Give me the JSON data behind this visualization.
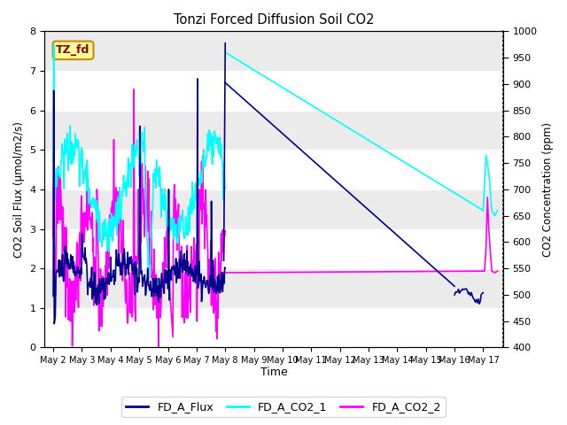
{
  "title": "Tonzi Forced Diffusion Soil CO2",
  "xlabel": "Time",
  "ylabel_left": "CO2 Soil Flux (μmol/m2/s)",
  "ylabel_right": "CO2 Concentration (ppm)",
  "ylim_left": [
    0.0,
    8.0
  ],
  "ylim_right": [
    400,
    1000
  ],
  "yticks_left": [
    0.0,
    1.0,
    2.0,
    3.0,
    4.0,
    5.0,
    6.0,
    7.0,
    8.0
  ],
  "yticks_right": [
    400,
    450,
    500,
    550,
    600,
    650,
    700,
    750,
    800,
    850,
    900,
    950,
    1000
  ],
  "xtick_labels": [
    "May 2",
    "May 3",
    "May 4",
    "May 5",
    "May 6",
    "May 7",
    "May 8",
    "May 9",
    "May 10",
    "May 11",
    "May 12",
    "May 13",
    "May 14",
    "May 15",
    "May 16",
    "May 17"
  ],
  "flux_color": "#00008B",
  "co2_1_color": "#00FFFF",
  "co2_2_color": "#FF00FF",
  "legend_entries": [
    "FD_A_Flux",
    "FD_A_CO2_1",
    "FD_A_CO2_2"
  ],
  "annotation_text": "TZ_fd",
  "annotation_bg": "#FFFF99",
  "annotation_border": "#CC8800",
  "plot_bg_light": "#EBEBEB",
  "plot_bg_dark": "#D8D8D8",
  "grid_color": "#FFFFFF"
}
